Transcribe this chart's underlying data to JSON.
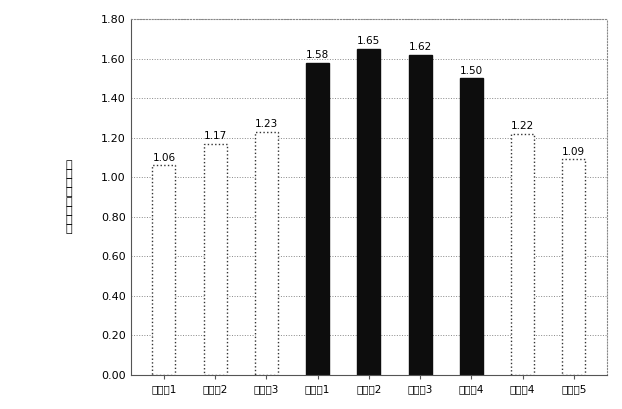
{
  "categories": [
    "比較例1",
    "比較例2",
    "比較例3",
    "実施例1",
    "実施例2",
    "実施例3",
    "実施例4",
    "比較例4",
    "比較例5"
  ],
  "values": [
    1.06,
    1.17,
    1.23,
    1.58,
    1.65,
    1.62,
    1.5,
    1.22,
    1.09
  ],
  "bar_colors": [
    "#ffffff",
    "#ffffff",
    "#ffffff",
    "#0d0d0d",
    "#0d0d0d",
    "#0d0d0d",
    "#0d0d0d",
    "#ffffff",
    "#ffffff"
  ],
  "bar_edge_colors": [
    "#333333",
    "#333333",
    "#333333",
    "#0d0d0d",
    "#0d0d0d",
    "#0d0d0d",
    "#0d0d0d",
    "#333333",
    "#333333"
  ],
  "bar_edge_styles": [
    "dotted",
    "dotted",
    "dotted",
    "solid",
    "solid",
    "solid",
    "solid",
    "dotted",
    "dotted"
  ],
  "ylabel": "相対遺伝子発現量",
  "ylim": [
    0.0,
    1.8
  ],
  "yticks": [
    0.0,
    0.2,
    0.4,
    0.6,
    0.8,
    1.0,
    1.2,
    1.4,
    1.6,
    1.8
  ],
  "grid_color": "#888888",
  "background_color": "#ffffff",
  "bar_width": 0.45,
  "label_fontsize": 7.5,
  "ylabel_fontsize": 8,
  "tick_fontsize": 8,
  "value_fontsize": 7.5
}
